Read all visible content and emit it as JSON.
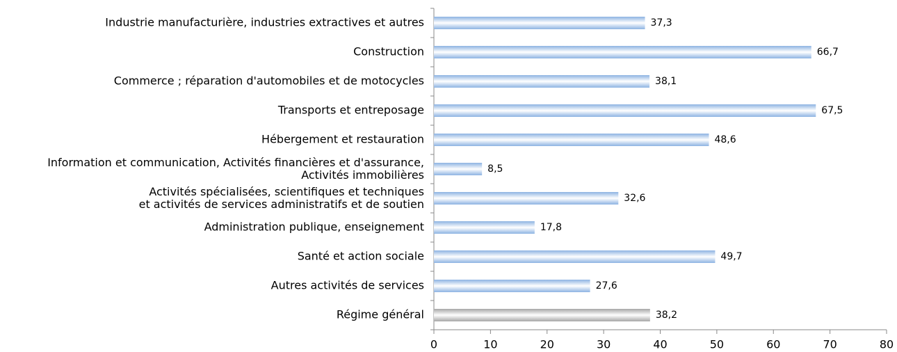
{
  "chart_data": {
    "type": "bar",
    "orientation": "horizontal",
    "categories": [
      "Industrie manufacturière, industries extractives et autres",
      "Construction",
      "Commerce ; réparation d'automobiles et de motocycles",
      "Transports et entreposage",
      "Hébergement et restauration",
      "Information et communication, Activités financières et d'assurance,\nActivités immobilières",
      "Activités spécialisées, scientifiques et techniques\net activités de services administratifs et de soutien",
      "Administration publique, enseignement",
      "Santé et action sociale",
      "Autres activités de services",
      "Régime général"
    ],
    "values": [
      37.3,
      66.7,
      38.1,
      67.5,
      48.6,
      8.5,
      32.6,
      17.8,
      49.7,
      27.6,
      38.2
    ],
    "value_labels": [
      "37,3",
      "66,7",
      "38,1",
      "67,5",
      "48,6",
      "8,5",
      "32,6",
      "17,8",
      "49,7",
      "27,6",
      "38,2"
    ],
    "colors": [
      "#8db3e2",
      "#8db3e2",
      "#8db3e2",
      "#8db3e2",
      "#8db3e2",
      "#8db3e2",
      "#8db3e2",
      "#8db3e2",
      "#8db3e2",
      "#8db3e2",
      "#a6a6a6"
    ],
    "xlim": [
      0,
      80
    ],
    "xticks": [
      0,
      10,
      20,
      30,
      40,
      50,
      60,
      70,
      80
    ]
  }
}
